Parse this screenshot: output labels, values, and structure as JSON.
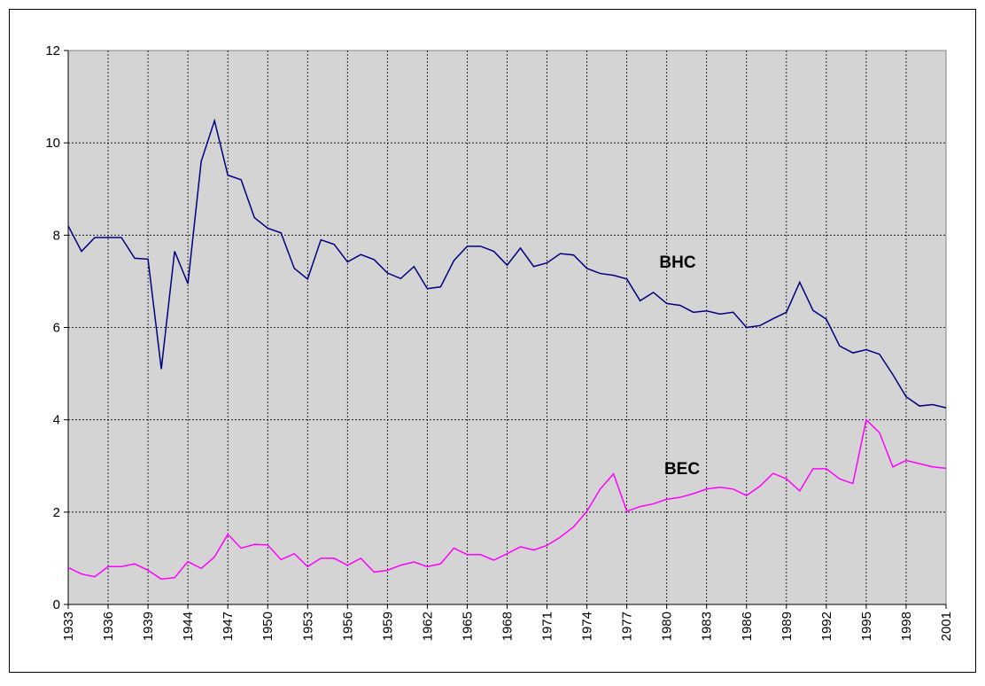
{
  "chart_data": {
    "type": "line",
    "categories": [
      "1933",
      null,
      null,
      "1936",
      null,
      null,
      "1939",
      null,
      null,
      "1944",
      null,
      null,
      "1947",
      null,
      null,
      "1950",
      null,
      null,
      "1953",
      null,
      null,
      "1956",
      null,
      null,
      "1959",
      null,
      null,
      "1962",
      null,
      null,
      "1965",
      null,
      null,
      "1968",
      null,
      null,
      "1971",
      null,
      null,
      "1974",
      null,
      null,
      "1977",
      null,
      null,
      "1980",
      null,
      null,
      "1983",
      null,
      null,
      "1986",
      null,
      null,
      "1989",
      null,
      null,
      "1992",
      null,
      null,
      "1995",
      null,
      null,
      "1998",
      null,
      null,
      "2001"
    ],
    "series": [
      {
        "name": "BHC",
        "color": "#000080",
        "values": [
          8.2,
          7.65,
          7.95,
          7.95,
          7.95,
          7.5,
          7.48,
          5.1,
          7.65,
          6.95,
          9.6,
          10.48,
          9.3,
          9.2,
          8.38,
          8.15,
          8.05,
          7.28,
          7.05,
          7.9,
          7.8,
          7.42,
          7.58,
          7.47,
          7.18,
          7.06,
          7.32,
          6.84,
          6.88,
          7.45,
          7.76,
          7.76,
          7.65,
          7.35,
          7.72,
          7.32,
          7.4,
          7.6,
          7.57,
          7.28,
          7.17,
          7.13,
          7.05,
          6.58,
          6.76,
          6.52,
          6.48,
          6.33,
          6.36,
          6.29,
          6.33,
          6.0,
          6.04,
          6.19,
          6.33,
          6.98,
          6.37,
          6.18,
          5.6,
          5.45,
          5.52,
          5.42,
          4.98,
          4.5,
          4.3,
          4.33,
          4.26
        ]
      },
      {
        "name": "BEC",
        "color": "#ff00ff",
        "values": [
          0.8,
          0.66,
          0.6,
          0.82,
          0.82,
          0.88,
          0.74,
          0.55,
          0.58,
          0.93,
          0.78,
          1.03,
          1.52,
          1.22,
          1.3,
          1.29,
          0.97,
          1.1,
          0.82,
          1.0,
          1.0,
          0.85,
          1.0,
          0.7,
          0.74,
          0.85,
          0.92,
          0.82,
          0.88,
          1.22,
          1.08,
          1.08,
          0.96,
          1.1,
          1.25,
          1.18,
          1.28,
          1.46,
          1.68,
          2.02,
          2.5,
          2.83,
          2.02,
          2.12,
          2.18,
          2.28,
          2.32,
          2.4,
          2.5,
          2.54,
          2.5,
          2.36,
          2.56,
          2.84,
          2.72,
          2.46,
          2.94,
          2.94,
          2.72,
          2.62,
          4.0,
          3.72,
          2.98,
          3.12,
          3.05,
          2.98,
          2.95
        ]
      }
    ],
    "ylim": [
      0,
      12
    ],
    "yticks": [
      0,
      2,
      4,
      6,
      8,
      10,
      12
    ],
    "grid": true
  }
}
